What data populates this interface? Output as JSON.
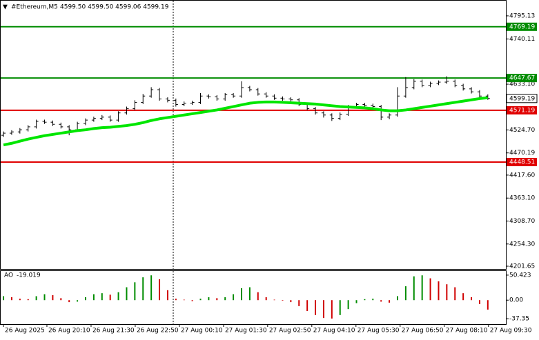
{
  "chart_data": [
    {
      "type": "candlestick",
      "title": "#Ethereum,M5",
      "header_prices": "4599.50 4599.50 4599.06 4599.19",
      "xlim": [
        -0.34,
        61.2
      ],
      "ylim": [
        4195.1,
        4831.0
      ],
      "yticks": [
        4795.13,
        4740.11,
        {
          "value": 4633.1,
          "label": "4633.10"
        },
        {
          "value": 4524.7,
          "label": "4524.70"
        },
        4470.19,
        {
          "value": 4417.6,
          "label": "4417.60"
        },
        {
          "value": 4363.1,
          "label": "4363.10"
        },
        {
          "value": 4308.7,
          "label": "4308.70"
        },
        {
          "value": 4254.3,
          "label": "4254.30"
        },
        4201.65
      ],
      "xticks": [
        {
          "value": 0,
          "label": "26 Aug 2025"
        },
        {
          "value": 5.29,
          "label": "26 Aug 20:10"
        },
        {
          "value": 10.67,
          "label": "26 Aug 21:30"
        },
        {
          "value": 16.05,
          "label": "26 Aug 22:50"
        },
        {
          "value": 21.43,
          "label": "27 Aug 00:10"
        },
        {
          "value": 26.81,
          "label": "27 Aug 01:30"
        },
        {
          "value": 32.18,
          "label": "27 Aug 02:50"
        },
        {
          "value": 37.56,
          "label": "27 Aug 04:10"
        },
        {
          "value": 42.94,
          "label": "27 Aug 05:30"
        },
        {
          "value": 48.32,
          "label": "27 Aug 06:50"
        },
        {
          "value": 53.7,
          "label": "27 Aug 08:10"
        },
        {
          "value": 59.08,
          "label": "27 Aug 09:30"
        }
      ],
      "color": "#000000",
      "open": [
        4512,
        4517,
        4520,
        4525,
        4532,
        4545,
        4543,
        4538,
        4532,
        4525,
        4540,
        4548,
        4552,
        4555,
        4548,
        4565,
        4575,
        4590,
        4605,
        4620,
        4598,
        4595,
        4585,
        4588,
        4590,
        4605,
        4603,
        4598,
        4608,
        4605,
        4625,
        4620,
        4610,
        4605,
        4600,
        4598,
        4596,
        4585,
        4575,
        4565,
        4560,
        4552,
        4562,
        4580,
        4585,
        4583,
        4580,
        4555,
        4560,
        4605,
        4625,
        4640,
        4630,
        4635,
        4638,
        4640,
        4630,
        4622,
        4615,
        4605
      ],
      "high": [
        4521,
        4524,
        4529,
        4536,
        4549,
        4549,
        4547,
        4542,
        4536,
        4544,
        4552,
        4556,
        4560,
        4559,
        4569,
        4580,
        4595,
        4610,
        4626,
        4624,
        4602,
        4599,
        4592,
        4594,
        4612,
        4609,
        4607,
        4612,
        4612,
        4640,
        4629,
        4624,
        4614,
        4609,
        4604,
        4602,
        4600,
        4589,
        4579,
        4569,
        4564,
        4566,
        4584,
        4589,
        4589,
        4587,
        4584,
        4564,
        4626,
        4650,
        4645,
        4644,
        4639,
        4642,
        4652,
        4644,
        4634,
        4626,
        4619,
        4609
      ],
      "low": [
        4508,
        4513,
        4516,
        4521,
        4528,
        4539,
        4534,
        4528,
        4512,
        4521,
        4536,
        4544,
        4548,
        4544,
        4544,
        4561,
        4571,
        4586,
        4601,
        4594,
        4590,
        4580,
        4581,
        4584,
        4586,
        4599,
        4594,
        4594,
        4601,
        4601,
        4616,
        4606,
        4601,
        4596,
        4594,
        4592,
        4581,
        4571,
        4561,
        4554,
        4546,
        4548,
        4558,
        4576,
        4579,
        4576,
        4548,
        4550,
        4556,
        4601,
        4621,
        4626,
        4626,
        4631,
        4634,
        4626,
        4618,
        4611,
        4601,
        4596
      ],
      "close": [
        4517,
        4520,
        4525,
        4532,
        4545,
        4543,
        4538,
        4532,
        4525,
        4540,
        4548,
        4552,
        4555,
        4548,
        4565,
        4575,
        4590,
        4605,
        4620,
        4598,
        4595,
        4585,
        4588,
        4590,
        4605,
        4603,
        4598,
        4608,
        4605,
        4625,
        4620,
        4610,
        4605,
        4600,
        4598,
        4596,
        4585,
        4575,
        4565,
        4560,
        4552,
        4562,
        4580,
        4585,
        4583,
        4580,
        4555,
        4560,
        4605,
        4625,
        4640,
        4630,
        4635,
        4638,
        4640,
        4630,
        4622,
        4615,
        4605,
        4599.19
      ],
      "ma": {
        "color": "#00e600",
        "values": [
          4489,
          4493,
          4498,
          4503,
          4507,
          4511,
          4514,
          4517,
          4520,
          4523,
          4525,
          4528,
          4530,
          4531,
          4533,
          4535,
          4538,
          4542,
          4547,
          4551,
          4554,
          4557,
          4560,
          4563,
          4566,
          4569,
          4572,
          4576,
          4580,
          4584,
          4588,
          4590,
          4591,
          4591,
          4590,
          4589,
          4588,
          4587,
          4586,
          4584,
          4582,
          4580,
          4579,
          4578,
          4577,
          4575,
          4572,
          4570,
          4570,
          4572,
          4575,
          4578,
          4581,
          4584,
          4587,
          4590,
          4593,
          4596,
          4599,
          4601
        ]
      },
      "levels": [
        {
          "value": 4769.19,
          "color": "#008c00"
        },
        {
          "value": 4647.67,
          "color": "#008c00"
        },
        {
          "value": 4571.19,
          "color": "#e00000"
        },
        {
          "value": 4448.51,
          "color": "#e00000"
        }
      ],
      "last_price": 4599.19
    },
    {
      "type": "bar",
      "title": "AO",
      "current_value": -19.019,
      "ylim": [
        -48.3,
        58.65
      ],
      "yticks": [
        50.423,
        {
          "value": 0,
          "label": "0.00"
        },
        -37.35
      ],
      "up_color": "#008c00",
      "down_color": "#d00000",
      "values": [
        8,
        6,
        3,
        2,
        8,
        12,
        10,
        4,
        -4,
        -3,
        6,
        12,
        14,
        11,
        16,
        26,
        36,
        46,
        50,
        42,
        20,
        3,
        1,
        -2,
        3,
        6,
        4,
        6,
        12,
        24,
        26,
        16,
        6,
        1,
        -1,
        -4,
        -12,
        -22,
        -30,
        -36,
        -37,
        -30,
        -18,
        -6,
        2,
        3,
        -3,
        -5,
        8,
        28,
        48,
        50,
        44,
        38,
        32,
        26,
        14,
        6,
        -8,
        -19.019
      ]
    }
  ]
}
